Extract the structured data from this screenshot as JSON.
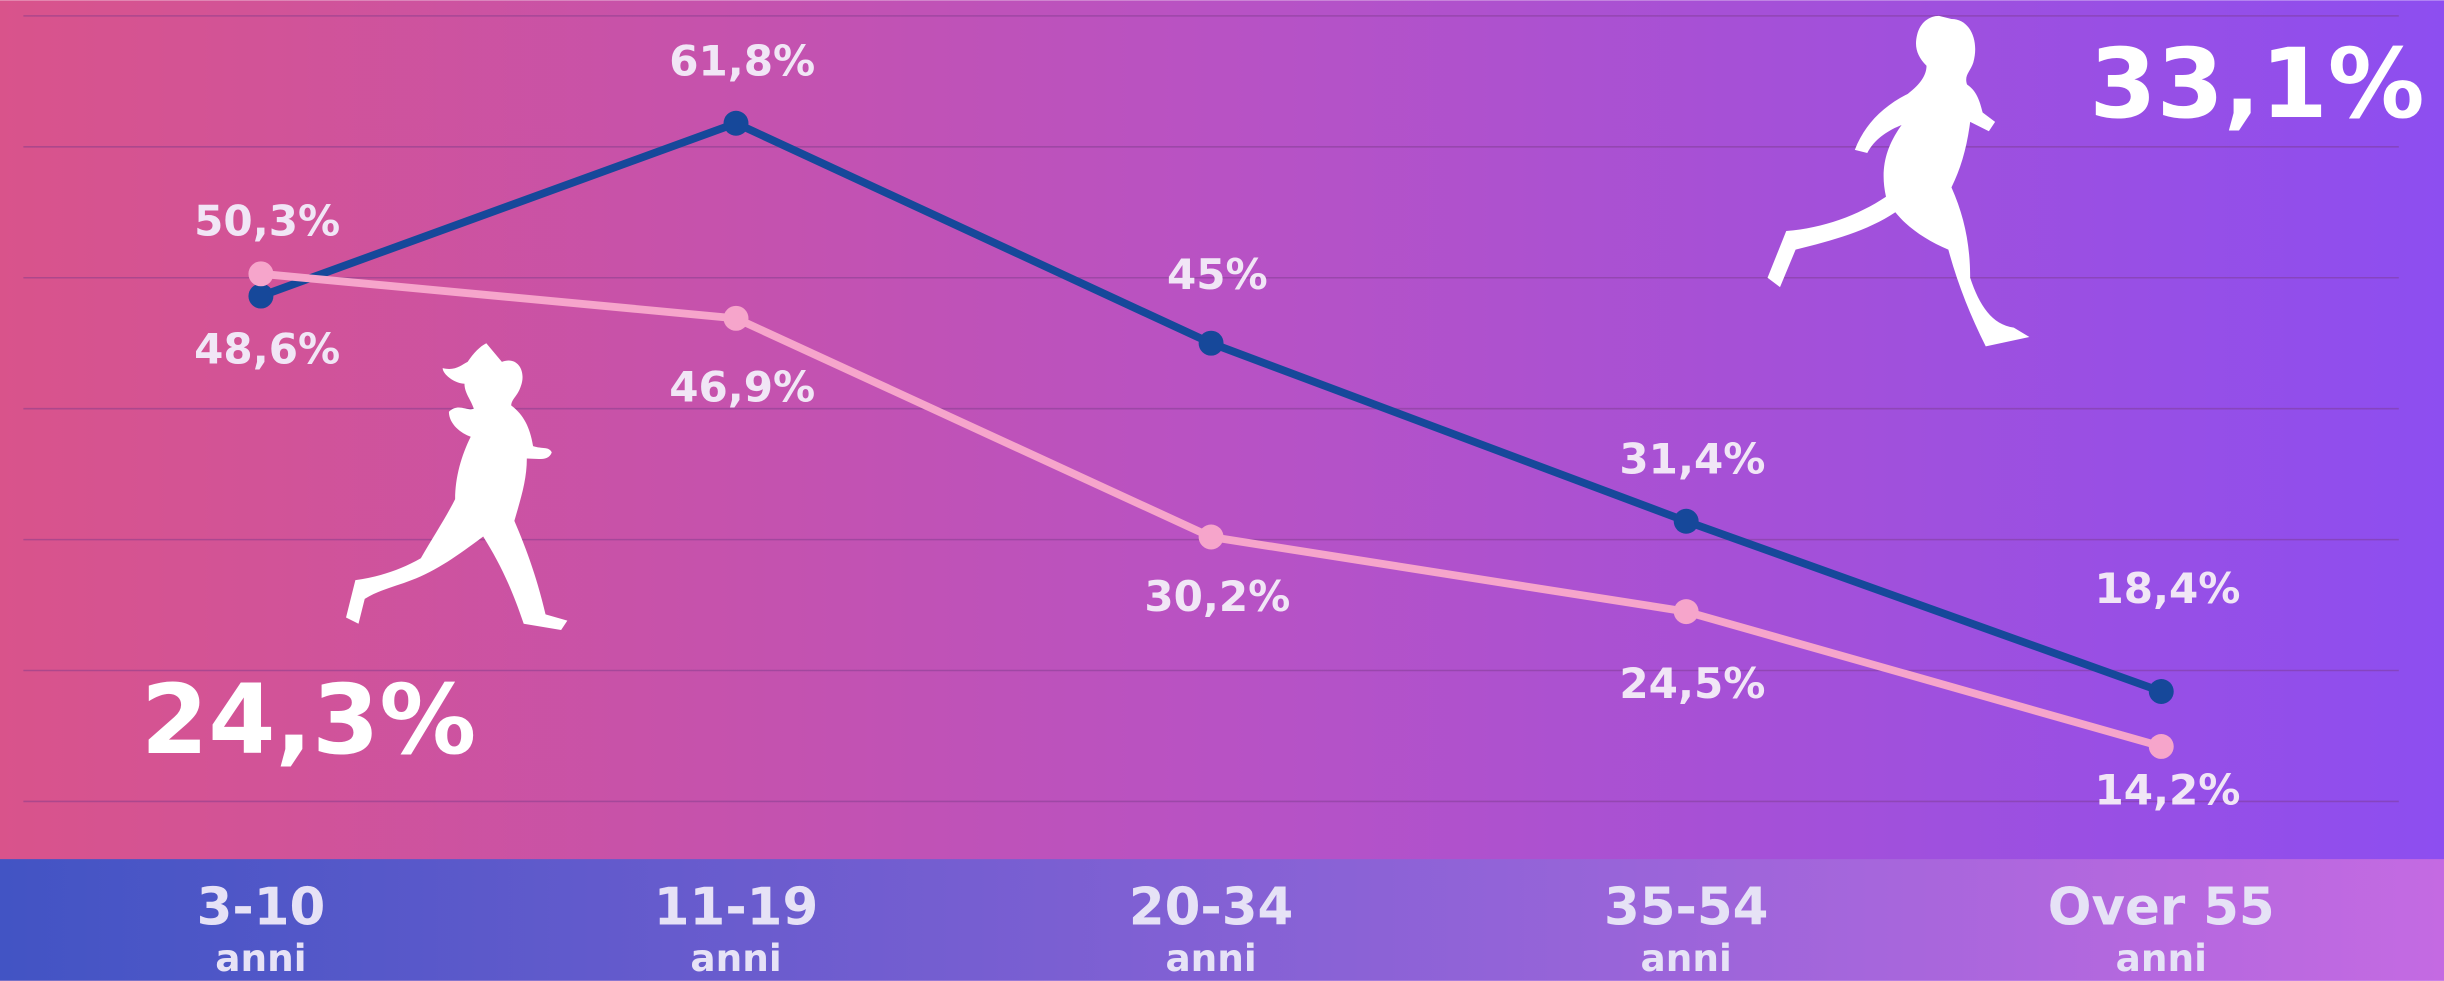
{
  "chart_data": {
    "type": "line",
    "categories": [
      "3-10",
      "11-19",
      "20-34",
      "35-54",
      "Over 55"
    ],
    "category_sublabel": "anni",
    "series": [
      {
        "color": "#16489a",
        "values": [
          48.6,
          61.8,
          45,
          31.4,
          18.4
        ],
        "value_labels": [
          "48,6%",
          "61,8%",
          "45%",
          "31,4%",
          "18,4%"
        ]
      },
      {
        "color": "#f6a5cb",
        "values": [
          50.3,
          46.9,
          30.2,
          24.5,
          14.2
        ],
        "value_labels": [
          "50,3%",
          "46,9%",
          "30,2%",
          "24,5%",
          "14,2%"
        ]
      }
    ],
    "annotations": [
      "24,3%",
      "33,1%"
    ],
    "ylim": [
      0,
      70
    ],
    "yticks": [
      10,
      20,
      30,
      40,
      50,
      60,
      70
    ],
    "grid": true
  }
}
